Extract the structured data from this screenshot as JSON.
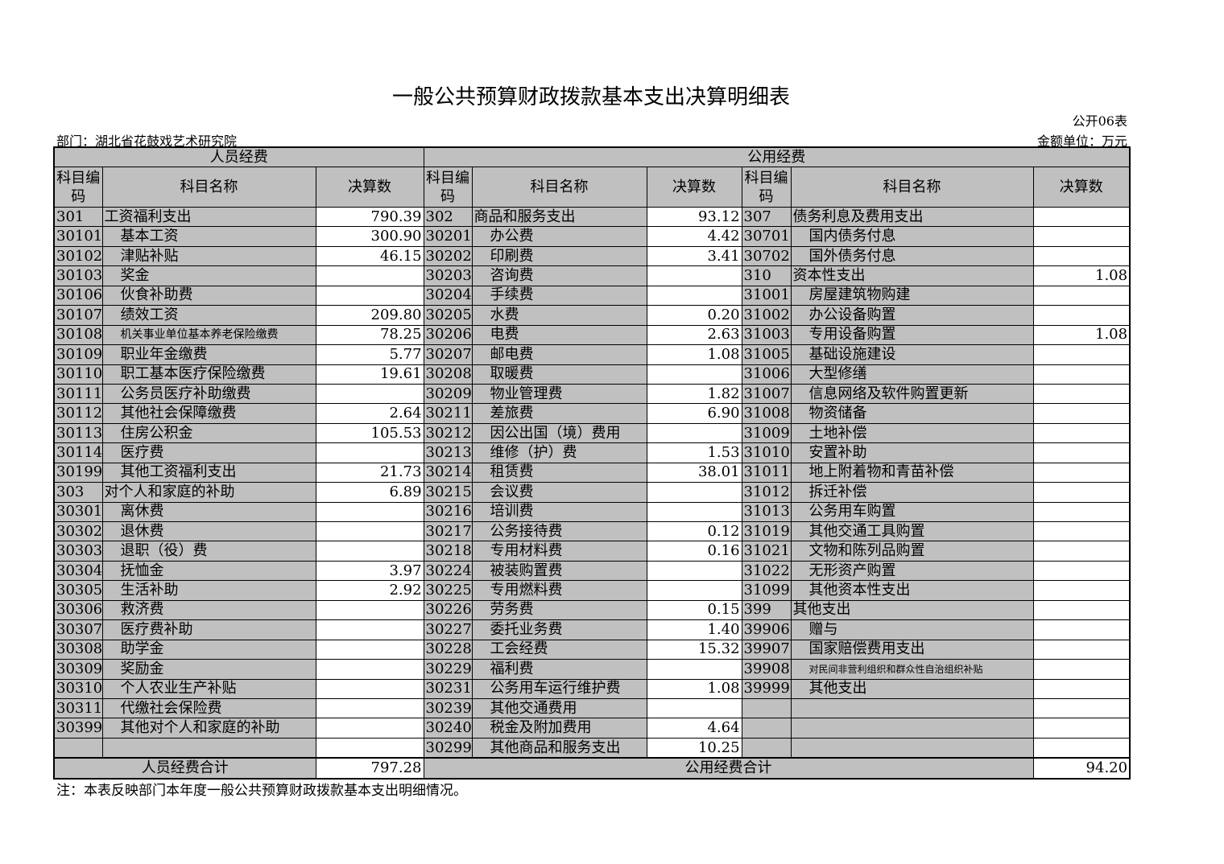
{
  "title": "一般公共预算财政拨款基本支出决算明细表",
  "form_no": "公开06表",
  "department": "部门：湖北省花鼓戏艺术研究院",
  "unit": "金额单位：万元",
  "headers": {
    "personnel": "人员经费",
    "public": "公用经费",
    "code": "科目编码",
    "name": "科目名称",
    "amount": "决算数"
  },
  "rows": [
    [
      [
        "301",
        "工资福利支出",
        "790.39"
      ],
      [
        "302",
        "商品和服务支出",
        "93.12"
      ],
      [
        "307",
        "债务利息及费用支出",
        ""
      ]
    ],
    [
      [
        "30101",
        "基本工资",
        "300.90"
      ],
      [
        "30201",
        "办公费",
        "4.42"
      ],
      [
        "30701",
        "国内债务付息",
        ""
      ]
    ],
    [
      [
        "30102",
        "津贴补贴",
        "46.15"
      ],
      [
        "30202",
        "印刷费",
        "3.41"
      ],
      [
        "30702",
        "国外债务付息",
        ""
      ]
    ],
    [
      [
        "30103",
        "奖金",
        ""
      ],
      [
        "30203",
        "咨询费",
        ""
      ],
      [
        "310",
        "资本性支出",
        "1.08"
      ]
    ],
    [
      [
        "30106",
        "伙食补助费",
        ""
      ],
      [
        "30204",
        "手续费",
        ""
      ],
      [
        "31001",
        "房屋建筑物购建",
        ""
      ]
    ],
    [
      [
        "30107",
        "绩效工资",
        "209.80"
      ],
      [
        "30205",
        "水费",
        "0.20"
      ],
      [
        "31002",
        "办公设备购置",
        ""
      ]
    ],
    [
      [
        "30108",
        "机关事业单位基本养老保险缴费",
        "78.25"
      ],
      [
        "30206",
        "电费",
        "2.63"
      ],
      [
        "31003",
        "专用设备购置",
        "1.08"
      ]
    ],
    [
      [
        "30109",
        "职业年金缴费",
        "5.77"
      ],
      [
        "30207",
        "邮电费",
        "1.08"
      ],
      [
        "31005",
        "基础设施建设",
        ""
      ]
    ],
    [
      [
        "30110",
        "职工基本医疗保险缴费",
        "19.61"
      ],
      [
        "30208",
        "取暖费",
        ""
      ],
      [
        "31006",
        "大型修缮",
        ""
      ]
    ],
    [
      [
        "30111",
        "公务员医疗补助缴费",
        ""
      ],
      [
        "30209",
        "物业管理费",
        "1.82"
      ],
      [
        "31007",
        "信息网络及软件购置更新",
        ""
      ]
    ],
    [
      [
        "30112",
        "其他社会保障缴费",
        "2.64"
      ],
      [
        "30211",
        "差旅费",
        "6.90"
      ],
      [
        "31008",
        "物资储备",
        ""
      ]
    ],
    [
      [
        "30113",
        "住房公积金",
        "105.53"
      ],
      [
        "30212",
        "因公出国（境）费用",
        ""
      ],
      [
        "31009",
        "土地补偿",
        ""
      ]
    ],
    [
      [
        "30114",
        "医疗费",
        ""
      ],
      [
        "30213",
        "维修（护）费",
        "1.53"
      ],
      [
        "31010",
        "安置补助",
        ""
      ]
    ],
    [
      [
        "30199",
        "其他工资福利支出",
        "21.73"
      ],
      [
        "30214",
        "租赁费",
        "38.01"
      ],
      [
        "31011",
        "地上附着物和青苗补偿",
        ""
      ]
    ],
    [
      [
        "303",
        "对个人和家庭的补助",
        "6.89"
      ],
      [
        "30215",
        "会议费",
        ""
      ],
      [
        "31012",
        "拆迁补偿",
        ""
      ]
    ],
    [
      [
        "30301",
        "离休费",
        ""
      ],
      [
        "30216",
        "培训费",
        ""
      ],
      [
        "31013",
        "公务用车购置",
        ""
      ]
    ],
    [
      [
        "30302",
        "退休费",
        ""
      ],
      [
        "30217",
        "公务接待费",
        "0.12"
      ],
      [
        "31019",
        "其他交通工具购置",
        ""
      ]
    ],
    [
      [
        "30303",
        "退职（役）费",
        ""
      ],
      [
        "30218",
        "专用材料费",
        "0.16"
      ],
      [
        "31021",
        "文物和陈列品购置",
        ""
      ]
    ],
    [
      [
        "30304",
        "抚恤金",
        "3.97"
      ],
      [
        "30224",
        "被装购置费",
        ""
      ],
      [
        "31022",
        "无形资产购置",
        ""
      ]
    ],
    [
      [
        "30305",
        "生活补助",
        "2.92"
      ],
      [
        "30225",
        "专用燃料费",
        ""
      ],
      [
        "31099",
        "其他资本性支出",
        ""
      ]
    ],
    [
      [
        "30306",
        "救济费",
        ""
      ],
      [
        "30226",
        "劳务费",
        "0.15"
      ],
      [
        "399",
        "其他支出",
        ""
      ]
    ],
    [
      [
        "30307",
        "医疗费补助",
        ""
      ],
      [
        "30227",
        "委托业务费",
        "1.40"
      ],
      [
        "39906",
        "赠与",
        ""
      ]
    ],
    [
      [
        "30308",
        "助学金",
        ""
      ],
      [
        "30228",
        "工会经费",
        "15.32"
      ],
      [
        "39907",
        "国家赔偿费用支出",
        ""
      ]
    ],
    [
      [
        "30309",
        "奖励金",
        ""
      ],
      [
        "30229",
        "福利费",
        ""
      ],
      [
        "39908",
        "对民间非营利组织和群众性自治组织补贴",
        ""
      ]
    ],
    [
      [
        "30310",
        "个人农业生产补贴",
        ""
      ],
      [
        "30231",
        "公务用车运行维护费",
        "1.08"
      ],
      [
        "39999",
        "其他支出",
        ""
      ]
    ],
    [
      [
        "30311",
        "代缴社会保险费",
        ""
      ],
      [
        "30239",
        "其他交通费用",
        ""
      ],
      [
        "",
        "",
        ""
      ]
    ],
    [
      [
        "30399",
        "其他对个人和家庭的补助",
        ""
      ],
      [
        "30240",
        "税金及附加费用",
        "4.64"
      ],
      [
        "",
        "",
        ""
      ]
    ],
    [
      [
        "",
        "",
        ""
      ],
      [
        "30299",
        "其他商品和服务支出",
        "10.25"
      ],
      [
        "",
        "",
        ""
      ]
    ]
  ],
  "totals": {
    "personnel_label": "人员经费合计",
    "personnel_value": "797.28",
    "public_label": "公用经费合计",
    "public_value": "94.20"
  },
  "note": "注：本表反映部门本年度一般公共预算财政拨款基本支出明细情况。",
  "colors": {
    "shaded_cell": "#c0c0c0",
    "value_cell": "#ffffff"
  }
}
